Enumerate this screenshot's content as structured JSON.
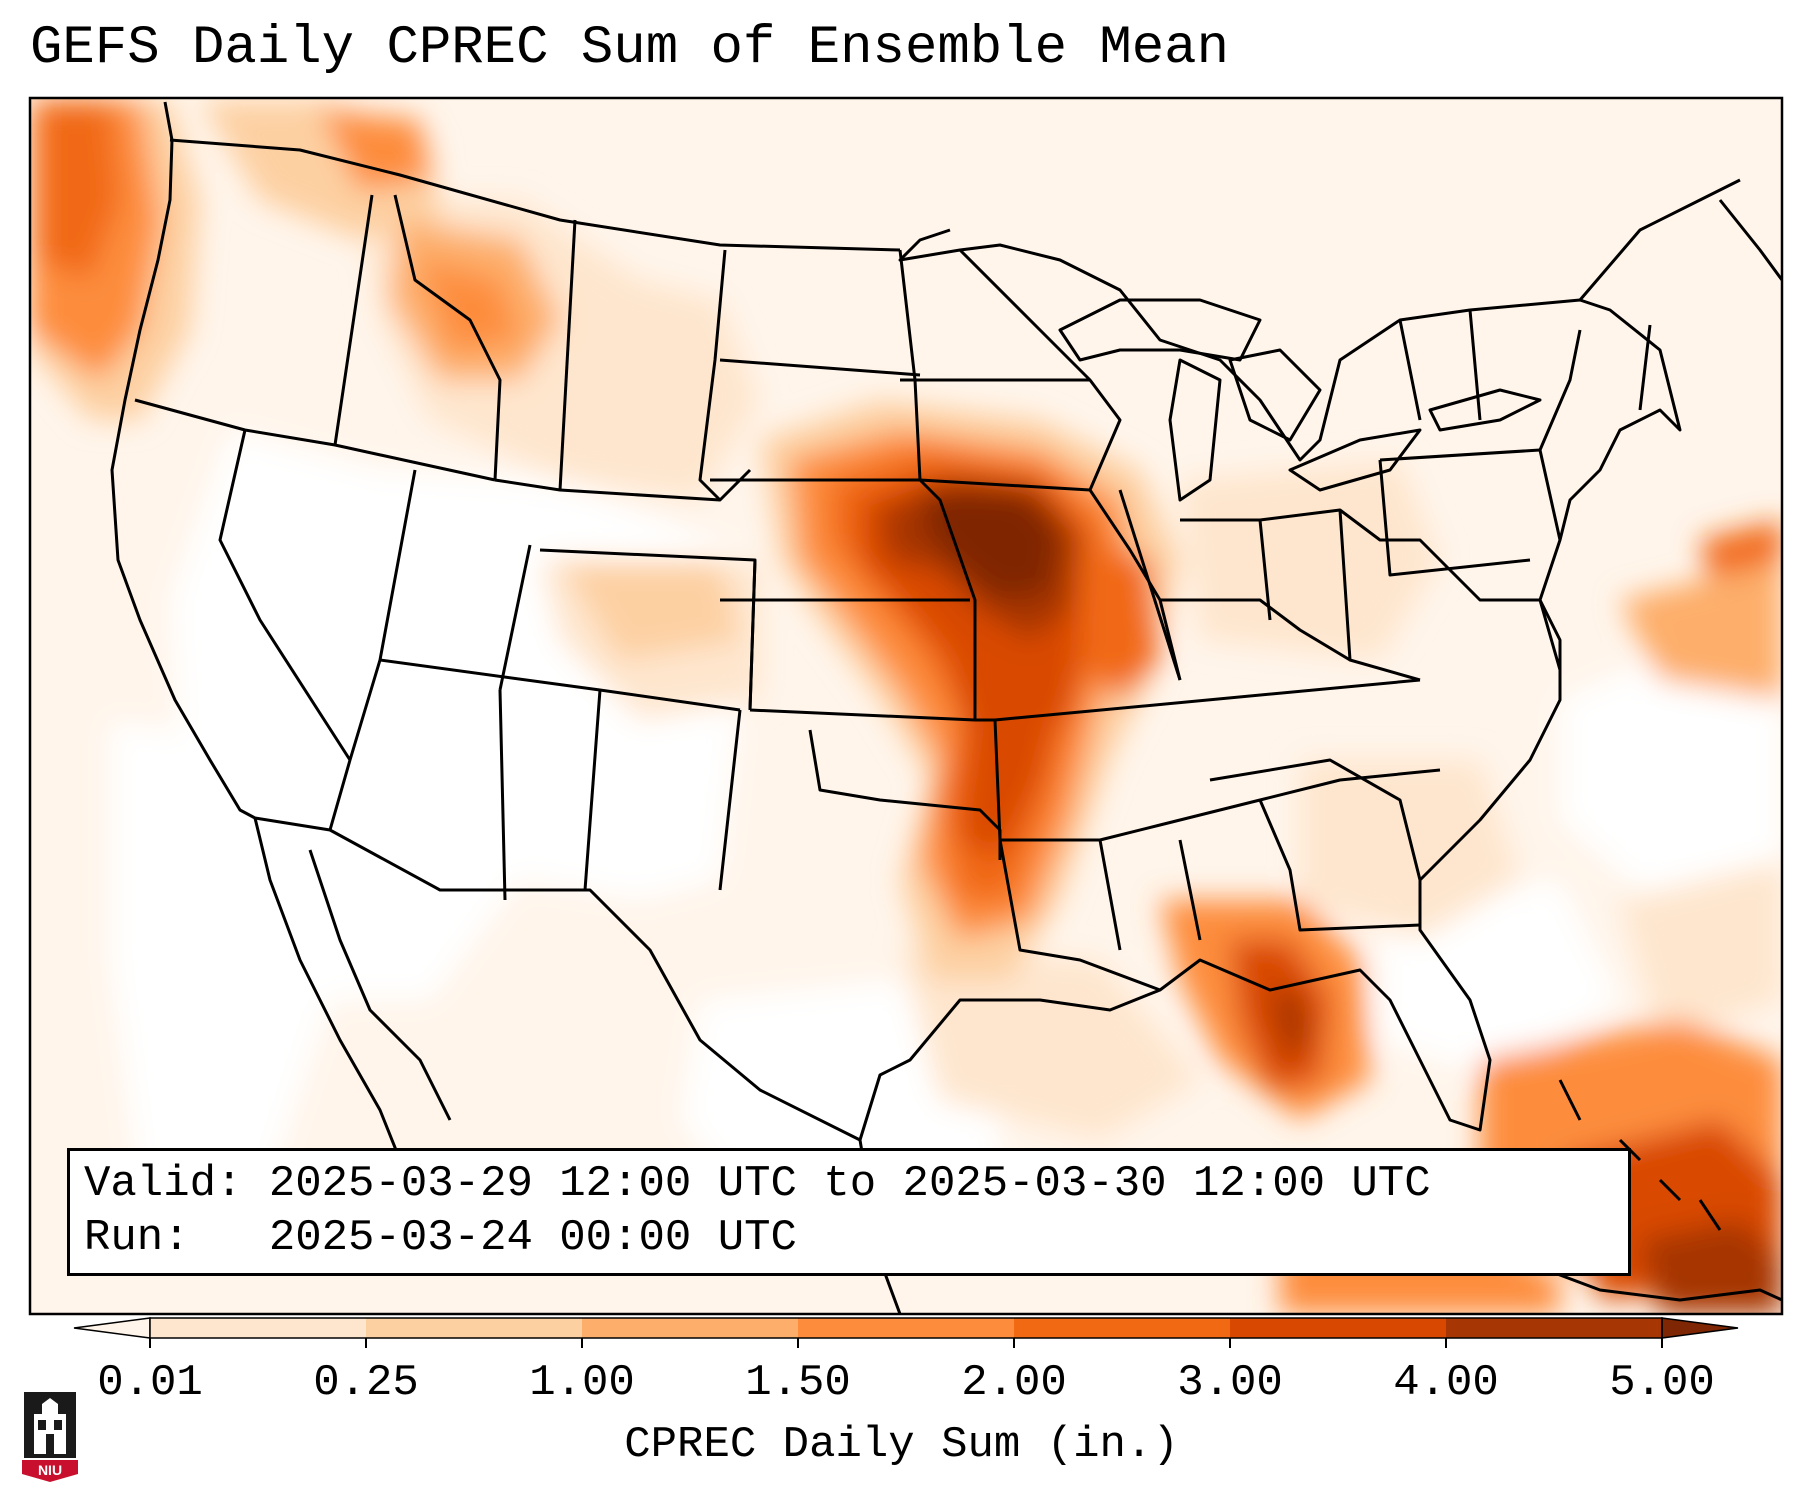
{
  "title": "GEFS Daily CPREC Sum of Ensemble Mean",
  "info": {
    "valid_line": "Valid: 2025-03-29 12:00 UTC to 2025-03-30 12:00 UTC",
    "run_line": "Run:   2025-03-24 00:00 UTC"
  },
  "colorbar": {
    "label": "CPREC Daily Sum (in.)",
    "ticks": [
      "0.01",
      "0.25",
      "1.00",
      "1.50",
      "2.00",
      "3.00",
      "4.00",
      "5.00"
    ],
    "colors": [
      "#fff5eb",
      "#fee6ce",
      "#fdd0a2",
      "#fdae6b",
      "#fd8d3c",
      "#f16913",
      "#d94801",
      "#a63603",
      "#7f2704"
    ],
    "extend": "both"
  },
  "logo": {
    "text": "NIU",
    "colors": {
      "red": "#c8102e",
      "black": "#1a1a1a"
    }
  }
}
